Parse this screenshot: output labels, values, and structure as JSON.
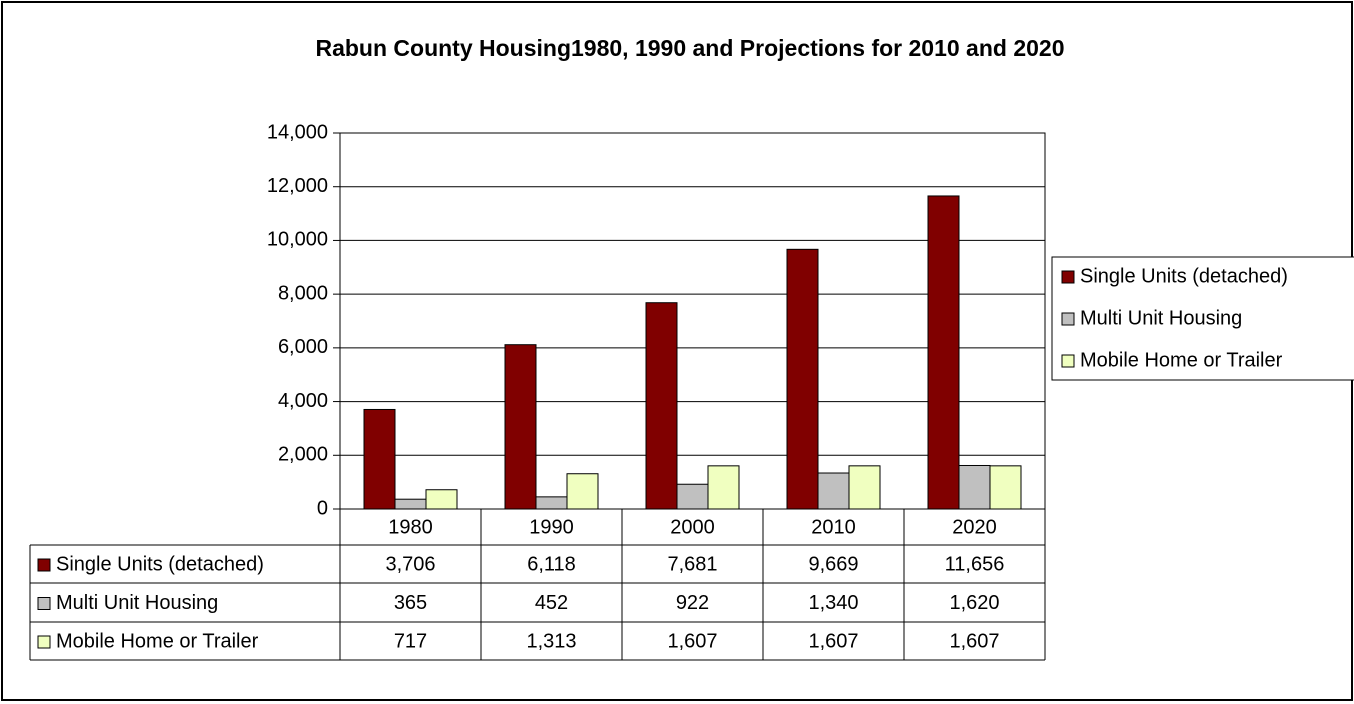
{
  "chart_data": {
    "type": "bar",
    "title": "Rabun County Housing1980, 1990 and  Projections for 2010 and 2020",
    "categories": [
      "1980",
      "1990",
      "2000",
      "2010",
      "2020"
    ],
    "series": [
      {
        "name": "Single Units (detached)",
        "color": "#800000",
        "values": [
          3706,
          6118,
          7681,
          9669,
          11656
        ],
        "value_labels": [
          "3,706",
          "6,118",
          "7,681",
          "9,669",
          "11,656"
        ]
      },
      {
        "name": "Multi Unit Housing",
        "color": "#c0c0c0",
        "values": [
          365,
          452,
          922,
          1340,
          1620
        ],
        "value_labels": [
          "365",
          "452",
          "922",
          "1,340",
          "1,620"
        ]
      },
      {
        "name": "Mobile Home or Trailer",
        "color": "#f0ffc0",
        "values": [
          717,
          1313,
          1607,
          1607,
          1607
        ],
        "value_labels": [
          "717",
          "1,313",
          "1,607",
          "1,607",
          "1,607"
        ]
      }
    ],
    "ylim": [
      0,
      14000
    ],
    "yticks": [
      0,
      {
        "value": 2000,
        "label": "2,000"
      },
      {
        "value": 4000,
        "label": "4,000"
      },
      {
        "value": 6000,
        "label": "6,000"
      },
      {
        "value": 8000,
        "label": "8,000"
      },
      {
        "value": 10000,
        "label": "10,000"
      },
      {
        "value": 12000,
        "label": "12,000"
      },
      {
        "value": 14000,
        "label": "14,000"
      }
    ],
    "grid": true,
    "legend": "right",
    "data_table": true
  }
}
